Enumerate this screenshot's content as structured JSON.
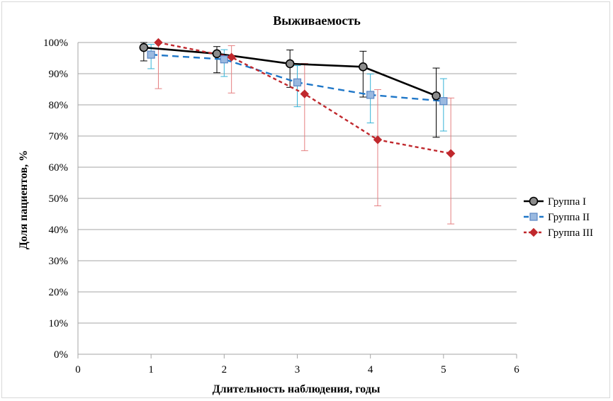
{
  "chart_data": {
    "type": "line",
    "title": "Выживаемость",
    "xlabel": "Длительность наблюдения, годы",
    "ylabel": "Доля пациентов, %",
    "xlim": [
      0,
      6
    ],
    "ylim": [
      0,
      100
    ],
    "x_ticks": [
      "0",
      "1",
      "2",
      "3",
      "4",
      "5",
      "6"
    ],
    "y_ticks": [
      "0%",
      "10%",
      "20%",
      "30%",
      "40%",
      "50%",
      "60%",
      "70%",
      "80%",
      "90%",
      "100%"
    ],
    "grid": true,
    "legend_position": "right",
    "series": [
      {
        "name": "Группа I",
        "color": "#000000",
        "marker": "circle",
        "line_style": "solid",
        "x": [
          0.9,
          1.9,
          2.9,
          3.9,
          4.9
        ],
        "y": [
          98.4,
          96.4,
          93.2,
          92.2,
          82.9
        ],
        "err_low": [
          94.1,
          90.3,
          85.6,
          82.5,
          69.6
        ],
        "err_high": [
          100.0,
          98.7,
          97.6,
          97.2,
          91.8
        ]
      },
      {
        "name": "Группа II",
        "color": "#1f77c8",
        "marker": "square",
        "line_style": "dashed",
        "x": [
          1.0,
          2.0,
          3.0,
          4.0,
          5.0
        ],
        "y": [
          96.1,
          94.6,
          87.2,
          83.2,
          81.2
        ],
        "err_low": [
          91.6,
          89.1,
          79.4,
          74.2,
          71.6
        ],
        "err_high": [
          99.4,
          97.7,
          92.6,
          89.9,
          88.4
        ]
      },
      {
        "name": "Группа III",
        "color": "#c0282d",
        "marker": "diamond",
        "line_style": "dotted",
        "x": [
          1.1,
          2.1,
          3.1,
          4.1,
          5.1
        ],
        "y": [
          100.0,
          95.3,
          83.5,
          68.8,
          64.4
        ],
        "err_low": [
          85.2,
          83.8,
          65.3,
          47.6,
          41.8
        ],
        "err_high": [
          100.0,
          99.0,
          93.3,
          84.9,
          82.2
        ]
      }
    ]
  }
}
